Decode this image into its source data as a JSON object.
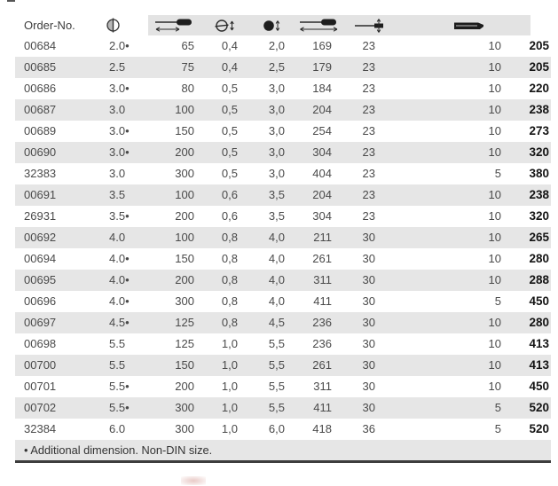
{
  "table": {
    "header": {
      "order_no_label": "Order-No.",
      "columns": [
        {
          "name": "order-no",
          "label": "Order-No."
        },
        {
          "name": "blade-diameter",
          "icon": "blade-diameter-icon"
        },
        {
          "name": "blade-length",
          "icon": "blade-length-icon"
        },
        {
          "name": "tip-thickness",
          "icon": "slotted-tip-thickness-icon"
        },
        {
          "name": "tip-width",
          "icon": "tip-width-icon"
        },
        {
          "name": "overall-length",
          "icon": "overall-length-icon"
        },
        {
          "name": "handle-diameter",
          "icon": "handle-diameter-icon"
        },
        {
          "name": "package-quantity",
          "icon": "package-quantity-icon"
        },
        {
          "name": "weight",
          "label": ""
        }
      ]
    },
    "rows": [
      [
        "00684",
        "2.0•",
        "65",
        "0,4",
        "2,0",
        "169",
        "23",
        "10",
        "205"
      ],
      [
        "00685",
        "2.5",
        "75",
        "0,4",
        "2,5",
        "179",
        "23",
        "10",
        "205"
      ],
      [
        "00686",
        "3.0•",
        "80",
        "0,5",
        "3,0",
        "184",
        "23",
        "10",
        "220"
      ],
      [
        "00687",
        "3.0",
        "100",
        "0,5",
        "3,0",
        "204",
        "23",
        "10",
        "238"
      ],
      [
        "00689",
        "3.0•",
        "150",
        "0,5",
        "3,0",
        "254",
        "23",
        "10",
        "273"
      ],
      [
        "00690",
        "3.0•",
        "200",
        "0,5",
        "3,0",
        "304",
        "23",
        "10",
        "320"
      ],
      [
        "32383",
        "3.0",
        "300",
        "0,5",
        "3,0",
        "404",
        "23",
        "5",
        "380"
      ],
      [
        "00691",
        "3.5",
        "100",
        "0,6",
        "3,5",
        "204",
        "23",
        "10",
        "238"
      ],
      [
        "26931",
        "3.5•",
        "200",
        "0,6",
        "3,5",
        "304",
        "23",
        "10",
        "320"
      ],
      [
        "00692",
        "4.0",
        "100",
        "0,8",
        "4,0",
        "211",
        "30",
        "10",
        "265"
      ],
      [
        "00694",
        "4.0•",
        "150",
        "0,8",
        "4,0",
        "261",
        "30",
        "10",
        "280"
      ],
      [
        "00695",
        "4.0•",
        "200",
        "0,8",
        "4,0",
        "311",
        "30",
        "10",
        "288"
      ],
      [
        "00696",
        "4.0•",
        "300",
        "0,8",
        "4,0",
        "411",
        "30",
        "5",
        "450"
      ],
      [
        "00697",
        "4.5•",
        "125",
        "0,8",
        "4,5",
        "236",
        "30",
        "10",
        "280"
      ],
      [
        "00698",
        "5.5",
        "125",
        "1,0",
        "5,5",
        "236",
        "30",
        "10",
        "413"
      ],
      [
        "00700",
        "5.5",
        "150",
        "1,0",
        "5,5",
        "261",
        "30",
        "10",
        "413"
      ],
      [
        "00701",
        "5.5•",
        "200",
        "1,0",
        "5,5",
        "311",
        "30",
        "10",
        "450"
      ],
      [
        "00702",
        "5.5•",
        "300",
        "1,0",
        "5,5",
        "411",
        "30",
        "5",
        "520"
      ],
      [
        "32384",
        "6.0",
        "300",
        "1,0",
        "6,0",
        "418",
        "36",
        "5",
        "520"
      ]
    ],
    "footnote": "• Additional dimension. Non-DIN size.",
    "colors": {
      "stripe": "#e6e6e6",
      "header_band": "#e3e3e3",
      "text": "#4a4a4a",
      "bold_text": "#141414",
      "bottom_rule": "#3d3d3d"
    }
  }
}
